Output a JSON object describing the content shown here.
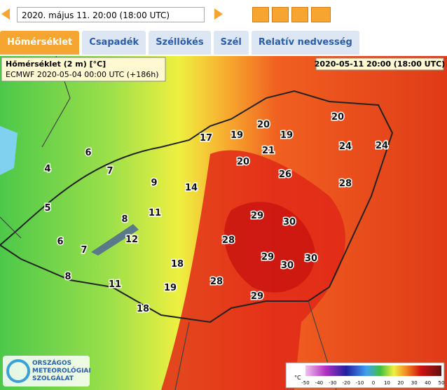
{
  "header": {
    "date_select": "2020. május 11. 20:00 (18:00  UTC)"
  },
  "tabs": [
    "Hőmérséklet",
    "Csapadék",
    "Széllökés",
    "Szél",
    "Relatív nedvesség"
  ],
  "map": {
    "info_title": "Hőmérséklet (2 m) [°C]",
    "info_model": "ECMWF 2020-05-04 00:00 UTC (+186h)",
    "valid_time": "2020-05-11 20:00 (18:00 UTC)",
    "labels": [
      "6",
      "4",
      "7",
      "5",
      "6",
      "7",
      "8",
      "9",
      "8",
      "11",
      "12",
      "14",
      "11",
      "18",
      "19",
      "18",
      "17",
      "19",
      "20",
      "19",
      "21",
      "20",
      "20",
      "24",
      "24",
      "26",
      "28",
      "29",
      "30",
      "28",
      "29",
      "30",
      "30",
      "28",
      "29"
    ],
    "legend": {
      "unit": "°C",
      "ticks": [
        "-50",
        "-40",
        "-30",
        "-20",
        "-10",
        "0",
        "10",
        "20",
        "30",
        "40",
        "50"
      ]
    }
  },
  "logo": [
    "ORSZÁGOS",
    "METEOROLÓGIAI",
    "SZOLGÁLAT"
  ]
}
